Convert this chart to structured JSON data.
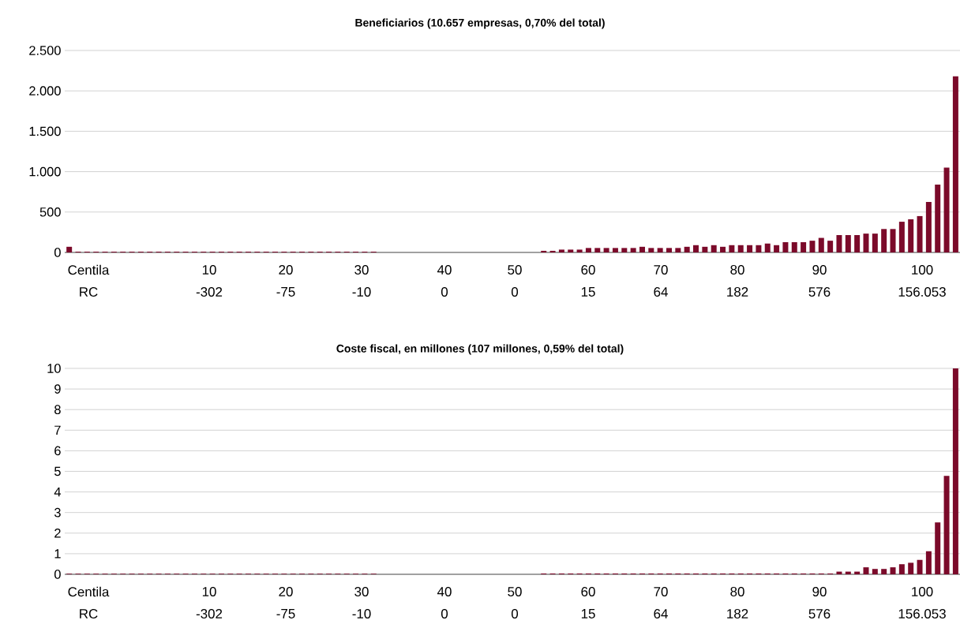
{
  "chart_data": [
    {
      "type": "bar",
      "title": "Beneficiarios (10.657 empresas, 0,70% del total)",
      "categories": [
        null,
        null,
        null,
        null,
        null,
        null,
        null,
        null,
        null,
        null,
        null,
        null,
        null,
        null,
        null,
        null,
        null,
        null,
        null,
        null,
        null,
        null,
        null,
        null,
        null,
        null,
        null,
        null,
        null,
        null,
        null,
        null,
        null,
        null,
        null,
        null,
        null,
        null,
        null,
        null,
        null,
        null,
        null,
        null,
        null,
        null,
        null,
        null,
        null,
        null,
        null,
        null,
        null,
        null,
        null,
        null,
        null,
        null,
        null,
        null,
        null,
        null,
        null,
        null,
        null,
        null,
        null,
        null,
        null,
        null,
        null,
        null,
        null,
        null,
        null,
        null,
        null,
        null,
        null,
        null,
        null,
        null,
        null,
        null,
        null,
        null,
        null,
        null,
        null,
        null,
        null,
        null,
        null,
        null,
        null,
        null,
        null,
        null,
        null,
        null
      ],
      "series": [
        {
          "color": "#7b0a2a",
          "values": [
            70,
            10,
            10,
            10,
            10,
            10,
            10,
            10,
            10,
            10,
            10,
            10,
            10,
            10,
            10,
            10,
            10,
            10,
            10,
            10,
            10,
            10,
            10,
            10,
            10,
            10,
            10,
            10,
            10,
            10,
            10,
            10,
            10,
            10,
            10,
            0,
            0,
            0,
            0,
            0,
            0,
            0,
            0,
            0,
            0,
            0,
            0,
            0,
            0,
            0,
            0,
            0,
            0,
            20,
            20,
            35,
            35,
            35,
            55,
            55,
            55,
            55,
            55,
            55,
            70,
            55,
            55,
            55,
            55,
            70,
            90,
            70,
            90,
            70,
            90,
            90,
            90,
            90,
            110,
            90,
            127,
            127,
            127,
            145,
            180,
            145,
            215,
            215,
            215,
            233,
            233,
            290,
            290,
            380,
            410,
            450,
            625,
            840,
            1050,
            2180
          ]
        }
      ],
      "ylim": [
        0,
        2500
      ],
      "yticks": [
        0,
        500,
        {
          "value": 1000,
          "label": "1.000"
        },
        {
          "value": 1500,
          "label": "1.500"
        },
        {
          "value": 2000,
          "label": "2.000"
        },
        {
          "value": 2500,
          "label": "2.500"
        }
      ],
      "grid": "y",
      "annotations": [
        "Centila",
        "10",
        "20",
        "30",
        "40",
        "50",
        "60",
        "70",
        "80",
        "90",
        "100",
        "RC",
        "-302",
        "-75",
        "-10",
        "0",
        "0",
        "15",
        "64",
        "182",
        "576",
        "156.053"
      ]
    },
    {
      "type": "bar",
      "title": "Coste fiscal, en millones (107 millones, 0,59% del total)",
      "categories": [
        null,
        null,
        null,
        null,
        null,
        null,
        null,
        null,
        null,
        null,
        null,
        null,
        null,
        null,
        null,
        null,
        null,
        null,
        null,
        null,
        null,
        null,
        null,
        null,
        null,
        null,
        null,
        null,
        null,
        null,
        null,
        null,
        null,
        null,
        null,
        null,
        null,
        null,
        null,
        null,
        null,
        null,
        null,
        null,
        null,
        null,
        null,
        null,
        null,
        null,
        null,
        null,
        null,
        null,
        null,
        null,
        null,
        null,
        null,
        null,
        null,
        null,
        null,
        null,
        null,
        null,
        null,
        null,
        null,
        null,
        null,
        null,
        null,
        null,
        null,
        null,
        null,
        null,
        null,
        null,
        null,
        null,
        null,
        null,
        null,
        null,
        null,
        null,
        null,
        null,
        null,
        null,
        null,
        null,
        null,
        null,
        null,
        null,
        null,
        null
      ],
      "series": [
        {
          "color": "#7b0a2a",
          "values": [
            0.03,
            0.03,
            0.03,
            0.03,
            0.03,
            0.03,
            0.03,
            0.03,
            0.03,
            0.03,
            0.03,
            0.03,
            0.03,
            0.03,
            0.03,
            0.03,
            0.03,
            0.03,
            0.03,
            0.03,
            0.03,
            0.03,
            0.03,
            0.03,
            0.03,
            0.03,
            0.03,
            0.03,
            0.03,
            0.03,
            0.03,
            0.03,
            0.03,
            0.03,
            0.03,
            0,
            0,
            0,
            0,
            0,
            0,
            0,
            0,
            0,
            0,
            0,
            0,
            0,
            0,
            0,
            0,
            0,
            0,
            0.04,
            0.04,
            0.04,
            0.04,
            0.04,
            0.04,
            0.04,
            0.04,
            0.04,
            0.04,
            0.04,
            0.04,
            0.04,
            0.04,
            0.04,
            0.04,
            0.04,
            0.04,
            0.04,
            0.04,
            0.04,
            0.04,
            0.04,
            0.04,
            0.04,
            0.04,
            0.04,
            0.04,
            0.04,
            0.04,
            0.04,
            0.04,
            0.04,
            0.13,
            0.13,
            0.13,
            0.34,
            0.26,
            0.26,
            0.34,
            0.49,
            0.56,
            0.7,
            1.12,
            2.52,
            4.78,
            10
          ]
        }
      ],
      "ylim": [
        0,
        10
      ],
      "yticks": [
        0,
        1,
        2,
        3,
        4,
        5,
        6,
        7,
        8,
        9,
        10
      ],
      "grid": "y",
      "annotations": [
        "Centila",
        "10",
        "20",
        "30",
        "40",
        "50",
        "60",
        "70",
        "80",
        "90",
        "100",
        "RC",
        "-302",
        "-75",
        "-10",
        "0",
        "0",
        "15",
        "64",
        "182",
        "576",
        "156.053"
      ]
    }
  ]
}
